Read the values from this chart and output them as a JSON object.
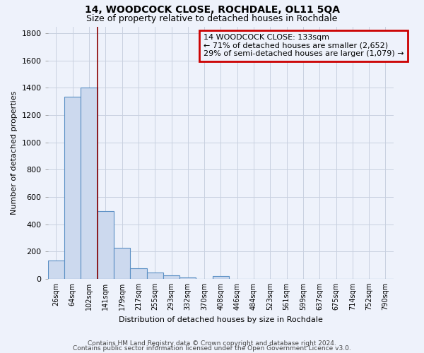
{
  "title": "14, WOODCOCK CLOSE, ROCHDALE, OL11 5QA",
  "subtitle": "Size of property relative to detached houses in Rochdale",
  "xlabel": "Distribution of detached houses by size in Rochdale",
  "ylabel": "Number of detached properties",
  "footer_line1": "Contains HM Land Registry data © Crown copyright and database right 2024.",
  "footer_line2": "Contains public sector information licensed under the Open Government Licence v3.0.",
  "bar_labels": [
    "26sqm",
    "64sqm",
    "102sqm",
    "141sqm",
    "179sqm",
    "217sqm",
    "255sqm",
    "293sqm",
    "332sqm",
    "370sqm",
    "408sqm",
    "446sqm",
    "484sqm",
    "523sqm",
    "561sqm",
    "599sqm",
    "637sqm",
    "675sqm",
    "714sqm",
    "752sqm",
    "790sqm"
  ],
  "bar_values": [
    135,
    1335,
    1400,
    495,
    225,
    75,
    45,
    25,
    10,
    0,
    20,
    0,
    0,
    0,
    0,
    0,
    0,
    0,
    0,
    0,
    0
  ],
  "bar_color": "#ccd9ee",
  "bar_edge_color": "#5a8fc4",
  "property_line_x": 2.5,
  "property_line_color": "#8b0000",
  "ylim": [
    0,
    1850
  ],
  "yticks": [
    0,
    200,
    400,
    600,
    800,
    1000,
    1200,
    1400,
    1600,
    1800
  ],
  "annotation_line1": "14 WOODCOCK CLOSE: 133sqm",
  "annotation_line2": "← 71% of detached houses are smaller (2,652)",
  "annotation_line3": "29% of semi-detached houses are larger (1,079) →",
  "annotation_box_color": "#cc0000",
  "background_color": "#eef2fb",
  "grid_color": "#c8d0e0",
  "title_fontsize": 10,
  "subtitle_fontsize": 9,
  "ylabel_fontsize": 8,
  "xlabel_fontsize": 8,
  "tick_fontsize": 8,
  "annotation_fontsize": 8,
  "footer_fontsize": 6.5
}
